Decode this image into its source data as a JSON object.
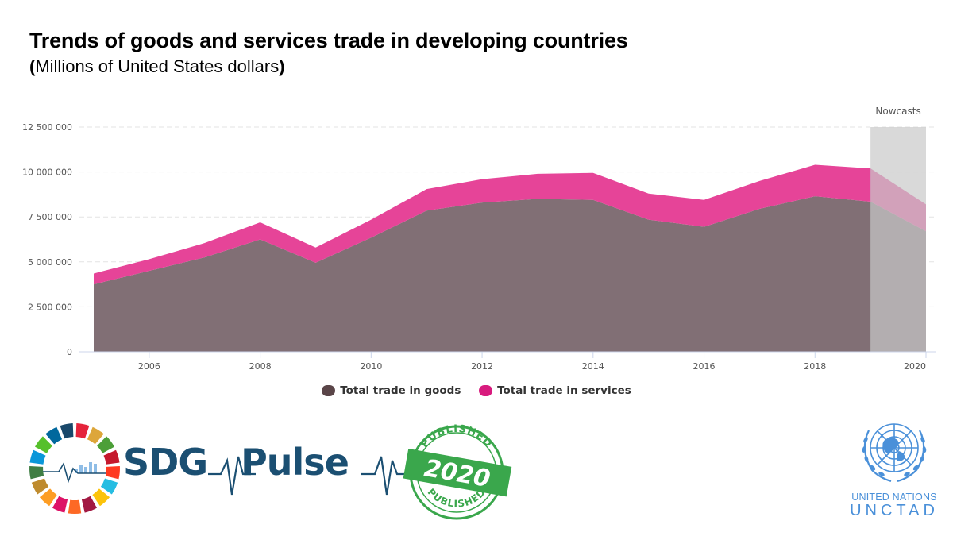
{
  "chart_data": {
    "type": "area",
    "title": "Trends of goods and services trade in developing countries",
    "subtitle_open": "(",
    "subtitle_text": "Millions of United States dollars",
    "subtitle_close": ")",
    "x": [
      2005,
      2006,
      2007,
      2008,
      2009,
      2010,
      2011,
      2012,
      2013,
      2014,
      2015,
      2016,
      2017,
      2018,
      2019,
      2020
    ],
    "xlim": [
      2005,
      2020
    ],
    "xticks": [
      "2006",
      "2008",
      "2010",
      "2012",
      "2014",
      "2016",
      "2018",
      "2020"
    ],
    "ylim": [
      0,
      12500000
    ],
    "yticks": [
      "0",
      "2 500 000",
      "5 000 000",
      "7 500 000",
      "10 000 000",
      "12 500 000"
    ],
    "stacked": true,
    "grid": true,
    "legend_position": "bottom",
    "series": [
      {
        "name": "Total trade in goods",
        "color": "#816f75",
        "legend_color": "#5a4548",
        "values": [
          3750000,
          4500000,
          5250000,
          6250000,
          4950000,
          6350000,
          7850000,
          8300000,
          8500000,
          8450000,
          7350000,
          6950000,
          7950000,
          8650000,
          8350000,
          6700000
        ]
      },
      {
        "name": "Total trade in services",
        "color": "#e64498",
        "legend_color": "#d81b7e",
        "values": [
          600000,
          650000,
          800000,
          950000,
          850000,
          1000000,
          1200000,
          1300000,
          1400000,
          1500000,
          1450000,
          1500000,
          1550000,
          1750000,
          1850000,
          1500000
        ]
      }
    ],
    "annotation": {
      "label": "Nowcasts",
      "x_start": 2019,
      "x_end": 2020,
      "color": "#c9c9c9"
    }
  },
  "branding": {
    "sdg_text": "SDG",
    "pulse_text": "Pulse",
    "stamp_top": "PUBLISHED",
    "stamp_year": "2020",
    "stamp_bottom": "PUBLISHED",
    "un_line1": "UNITED NATIONS",
    "un_line2": "UNCTAD",
    "sdg_colors": [
      "#e5243b",
      "#dda63a",
      "#4c9f38",
      "#c5192d",
      "#ff3a21",
      "#26bde2",
      "#fcc30b",
      "#a21942",
      "#fd6925",
      "#dd1367",
      "#fd9d24",
      "#bf8b2e",
      "#3f7e44",
      "#0a97d9",
      "#56c02b",
      "#00689d",
      "#19486a"
    ],
    "stamp_color": "#3aa74c",
    "un_color": "#4a90d9"
  }
}
